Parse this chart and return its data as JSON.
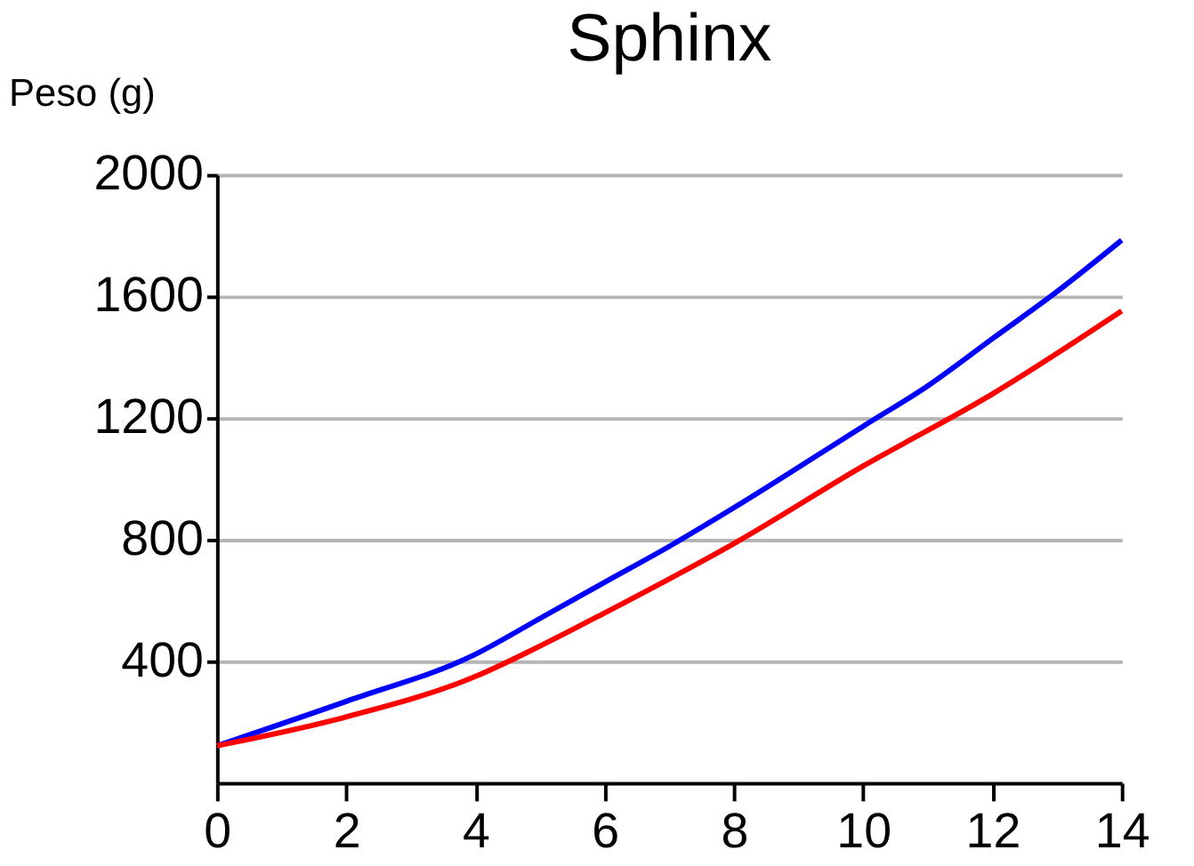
{
  "chart_data": {
    "type": "line",
    "title": "Sphinx",
    "ylabel": "Peso (g)",
    "xlim": [
      0,
      14
    ],
    "xticks": [
      0,
      2,
      4,
      6,
      8,
      10,
      12,
      14
    ],
    "ylim": [
      0,
      2000
    ],
    "yticks": [
      400,
      800,
      1200,
      1600,
      2000
    ],
    "grid": "y",
    "legend": false,
    "series": [
      {
        "color": "#0000ff",
        "x": [
          0,
          2,
          4,
          5,
          6,
          7,
          8,
          10,
          11,
          12,
          13,
          14
        ],
        "values": [
          122,
          268,
          423,
          541,
          660,
          778,
          905,
          1173,
          1306,
          1461,
          1616,
          1785
        ]
      },
      {
        "color": "#ff0000",
        "x": [
          0,
          2,
          4,
          5,
          6,
          8,
          10,
          12,
          14
        ],
        "values": [
          122,
          217,
          350,
          450,
          559,
          787,
          1042,
          1279,
          1552
        ]
      }
    ]
  }
}
